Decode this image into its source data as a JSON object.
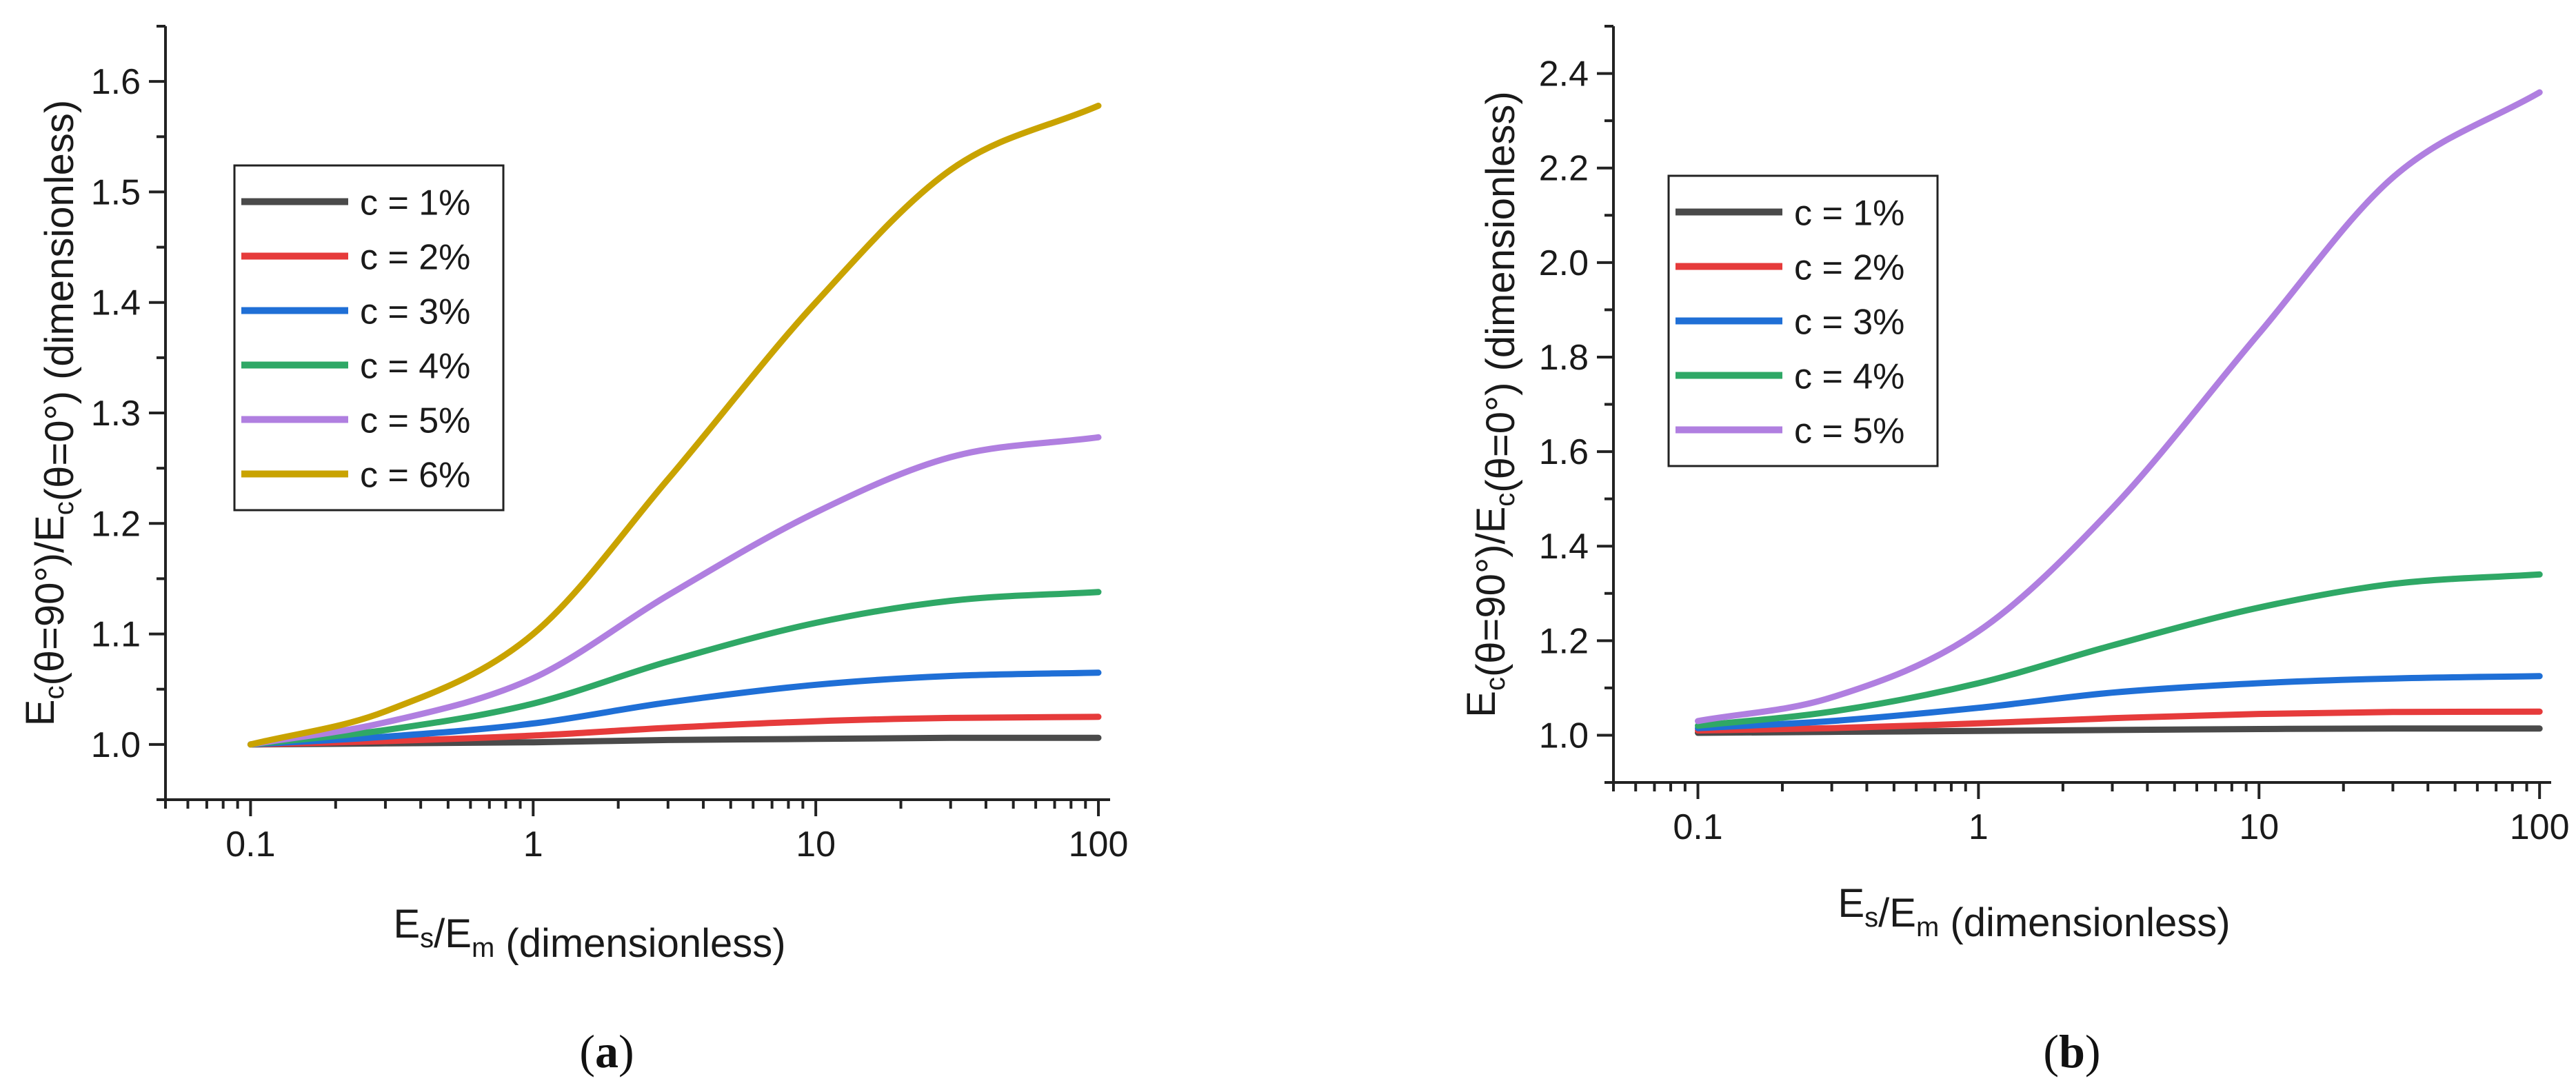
{
  "chart_data": [
    {
      "type": "line",
      "panel_label": "(a)",
      "xscale": "log",
      "xlim": [
        0.05,
        110
      ],
      "ylim": [
        0.95,
        1.65
      ],
      "xticks": [
        0.1,
        1,
        10,
        100
      ],
      "xtick_labels": [
        "0.1",
        "1",
        "10",
        "100"
      ],
      "yticks": [
        1.0,
        1.1,
        1.2,
        1.3,
        1.4,
        1.5,
        1.6
      ],
      "ytick_labels": [
        "1.0",
        "1.1",
        "1.2",
        "1.3",
        "1.4",
        "1.5",
        "1.6"
      ],
      "xlabel": {
        "p1": "E",
        "s1": "s",
        "p2": "/E",
        "s2": "m",
        "p3": " (dimensionless)"
      },
      "ylabel": {
        "p1": "E",
        "s1": "c",
        "p2": "(θ=90°)/E",
        "s2": "c",
        "p3": "(θ=0°) (dimensionless)"
      },
      "legend_position": "upper-left",
      "grid": false,
      "series": [
        {
          "name": "c = 1%",
          "color": "#4a4a4a",
          "x": [
            0.1,
            0.3,
            1,
            3,
            10,
            30,
            100
          ],
          "y": [
            1.0,
            1.001,
            1.002,
            1.004,
            1.005,
            1.006,
            1.006
          ]
        },
        {
          "name": "c = 2%",
          "color": "#e63b3b",
          "x": [
            0.1,
            0.3,
            1,
            3,
            10,
            30,
            100
          ],
          "y": [
            1.0,
            1.003,
            1.008,
            1.015,
            1.021,
            1.024,
            1.025
          ]
        },
        {
          "name": "c = 3%",
          "color": "#1f6fd6",
          "x": [
            0.1,
            0.3,
            1,
            3,
            10,
            30,
            100
          ],
          "y": [
            1.0,
            1.007,
            1.019,
            1.038,
            1.054,
            1.062,
            1.065
          ]
        },
        {
          "name": "c = 4%",
          "color": "#2fa866",
          "x": [
            0.1,
            0.3,
            1,
            3,
            10,
            30,
            100
          ],
          "y": [
            1.0,
            1.013,
            1.037,
            1.075,
            1.11,
            1.13,
            1.138
          ]
        },
        {
          "name": "c = 5%",
          "color": "#b07fe0",
          "x": [
            0.1,
            0.3,
            1,
            3,
            10,
            30,
            100
          ],
          "y": [
            1.0,
            1.02,
            1.06,
            1.135,
            1.21,
            1.26,
            1.278
          ]
        },
        {
          "name": "c = 6%",
          "color": "#c9a300",
          "x": [
            0.1,
            0.3,
            1,
            3,
            10,
            30,
            100
          ],
          "y": [
            1.0,
            1.03,
            1.1,
            1.24,
            1.4,
            1.52,
            1.578
          ]
        }
      ]
    },
    {
      "type": "line",
      "panel_label": "(b)",
      "xscale": "log",
      "xlim": [
        0.05,
        110
      ],
      "ylim": [
        0.9,
        2.5
      ],
      "xticks": [
        0.1,
        1,
        10,
        100
      ],
      "xtick_labels": [
        "0.1",
        "1",
        "10",
        "100"
      ],
      "yticks": [
        1.0,
        1.2,
        1.4,
        1.6,
        1.8,
        2.0,
        2.2,
        2.4
      ],
      "ytick_labels": [
        "1.0",
        "1.2",
        "1.4",
        "1.6",
        "1.8",
        "2.0",
        "2.2",
        "2.4"
      ],
      "xlabel": {
        "p1": "E",
        "s1": "s",
        "p2": "/E",
        "s2": "m",
        "p3": " (dimensionless)"
      },
      "ylabel": {
        "p1": "E",
        "s1": "c",
        "p2": "(θ=90°)/E",
        "s2": "c",
        "p3": "(θ=0°) (dimensionless)"
      },
      "legend_position": "upper-left",
      "grid": false,
      "series": [
        {
          "name": "c = 1%",
          "color": "#4a4a4a",
          "x": [
            0.1,
            0.3,
            1,
            3,
            10,
            30,
            100
          ],
          "y": [
            1.005,
            1.007,
            1.009,
            1.011,
            1.013,
            1.014,
            1.014
          ]
        },
        {
          "name": "c = 2%",
          "color": "#e63b3b",
          "x": [
            0.1,
            0.3,
            1,
            3,
            10,
            30,
            100
          ],
          "y": [
            1.01,
            1.015,
            1.025,
            1.036,
            1.045,
            1.049,
            1.05
          ]
        },
        {
          "name": "c = 3%",
          "color": "#1f6fd6",
          "x": [
            0.1,
            0.3,
            1,
            3,
            10,
            30,
            100
          ],
          "y": [
            1.015,
            1.03,
            1.058,
            1.09,
            1.11,
            1.12,
            1.125
          ]
        },
        {
          "name": "c = 4%",
          "color": "#2fa866",
          "x": [
            0.1,
            0.3,
            1,
            3,
            10,
            30,
            100
          ],
          "y": [
            1.02,
            1.05,
            1.11,
            1.19,
            1.27,
            1.32,
            1.34
          ]
        },
        {
          "name": "c = 5%",
          "color": "#b07fe0",
          "x": [
            0.1,
            0.3,
            1,
            3,
            10,
            30,
            100
          ],
          "y": [
            1.03,
            1.08,
            1.22,
            1.48,
            1.85,
            2.18,
            2.36
          ]
        }
      ]
    }
  ]
}
